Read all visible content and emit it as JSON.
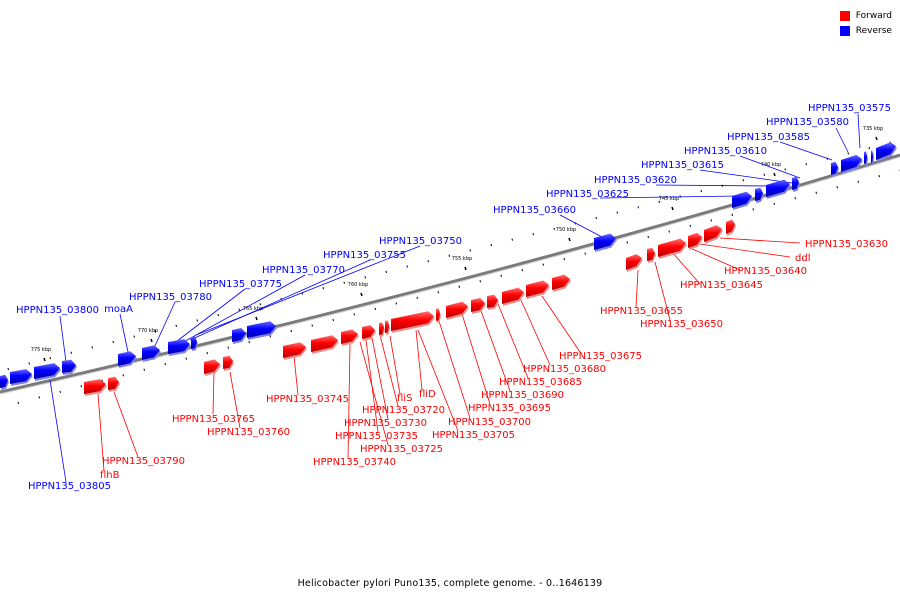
{
  "legend": [
    {
      "name": "Forward",
      "color": "#ff0000"
    },
    {
      "name": "Reverse",
      "color": "#0000ff"
    }
  ],
  "caption": "Helicobacter pylori Puno135, complete genome. - 0..1646139",
  "ticks": [
    "775 kbp",
    "770 kbp",
    "765 kbp",
    "760 kbp",
    "755 kbp",
    "750 kbp",
    "745 kbp",
    "740 kbp",
    "735 kbp"
  ],
  "reverse_genes": [
    "HPPN135_03575",
    "HPPN135_03580",
    "HPPN135_03585",
    "HPPN135_03610",
    "HPPN135_03615",
    "HPPN135_03620",
    "HPPN135_03625",
    "HPPN135_03660",
    "HPPN135_03750",
    "HPPN135_03755",
    "HPPN135_03770",
    "HPPN135_03775",
    "HPPN135_03780",
    "moaA",
    "HPPN135_03800",
    "HPPN135_03805"
  ],
  "forward_genes": [
    "HPPN135_03630",
    "ddl",
    "HPPN135_03640",
    "HPPN135_03645",
    "HPPN135_03655",
    "HPPN135_03650",
    "HPPN135_03675",
    "HPPN135_03680",
    "HPPN135_03685",
    "HPPN135_03690",
    "HPPN135_03695",
    "HPPN135_03700",
    "HPPN135_03705",
    "fliD",
    "fliS",
    "HPPN135_03720",
    "HPPN135_03730",
    "HPPN135_03735",
    "HPPN135_03725",
    "HPPN135_03740",
    "HPPN135_03745",
    "HPPN135_03765",
    "HPPN135_03760",
    "HPPN135_03790",
    "flhB"
  ],
  "colors": {
    "forward": "#ff0000",
    "reverse": "#0000ff",
    "backbone": "#7a7a7a"
  }
}
